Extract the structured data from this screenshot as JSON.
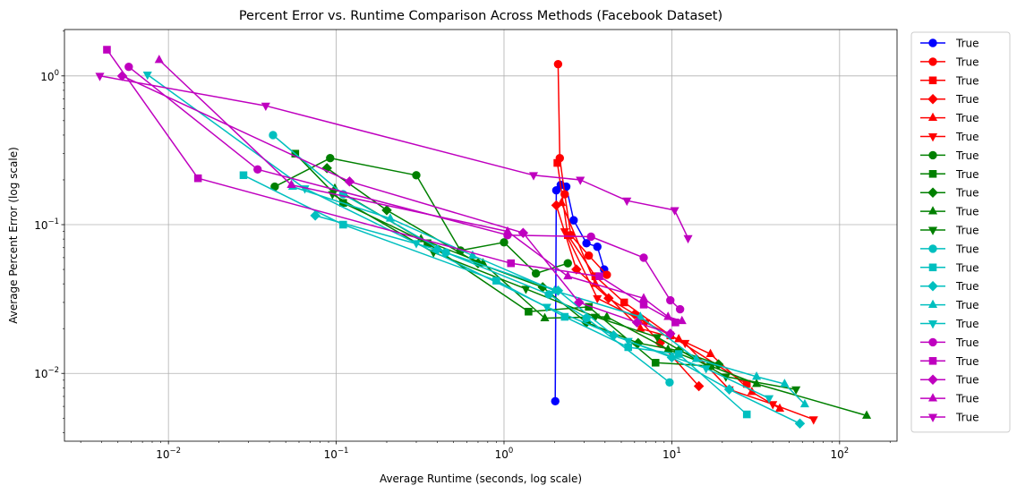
{
  "chart_data": {
    "type": "line",
    "title": "Percent Error vs. Runtime Comparison Across Methods (Facebook Dataset)",
    "xlabel": "Average Runtime (seconds, log scale)",
    "ylabel": "Average Percent Error (log scale)",
    "xscale": "log",
    "yscale": "log",
    "xlim": [
      0.0024,
      220
    ],
    "ylim": [
      0.0035,
      2.05
    ],
    "x_ticks": [
      {
        "value": 0.01,
        "base": "10",
        "exp": "−2"
      },
      {
        "value": 0.1,
        "base": "10",
        "exp": "−1"
      },
      {
        "value": 1,
        "base": "10",
        "exp": "0"
      },
      {
        "value": 10,
        "base": "10",
        "exp": "1"
      },
      {
        "value": 100,
        "base": "10",
        "exp": "2"
      }
    ],
    "y_ticks": [
      {
        "value": 0.01,
        "base": "10",
        "exp": "−2"
      },
      {
        "value": 0.1,
        "base": "10",
        "exp": "−1"
      },
      {
        "value": 1,
        "base": "10",
        "exp": "0"
      }
    ],
    "grid": true,
    "legend_position": "outside-right",
    "series": [
      {
        "name": "True",
        "color": "#0000ff",
        "marker": "circle",
        "x": [
          2.02,
          2.05,
          2.18,
          2.35,
          2.6,
          3.1,
          3.6,
          3.95
        ],
        "y": [
          0.0065,
          0.17,
          0.185,
          0.18,
          0.107,
          0.075,
          0.071,
          0.05
        ]
      },
      {
        "name": "True",
        "color": "#ff0000",
        "marker": "circle",
        "x": [
          2.1,
          2.15,
          2.3,
          2.5,
          3.2,
          4.1
        ],
        "y": [
          1.2,
          0.28,
          0.16,
          0.085,
          0.062,
          0.046
        ]
      },
      {
        "name": "True",
        "color": "#ff0000",
        "marker": "square",
        "x": [
          2.08,
          2.4,
          3.5,
          5.2,
          9.8,
          28
        ],
        "y": [
          0.26,
          0.085,
          0.045,
          0.03,
          0.018,
          0.0085
        ]
      },
      {
        "name": "True",
        "color": "#ff0000",
        "marker": "diamond",
        "x": [
          2.05,
          2.7,
          4.2,
          6.0,
          8.5,
          14.5
        ],
        "y": [
          0.135,
          0.05,
          0.032,
          0.025,
          0.016,
          0.0082
        ]
      },
      {
        "name": "True",
        "color": "#ff0000",
        "marker": "triangle-up",
        "x": [
          2.2,
          3.5,
          6.5,
          11,
          17,
          30,
          44
        ],
        "y": [
          0.14,
          0.04,
          0.02,
          0.017,
          0.0135,
          0.0075,
          0.0058
        ]
      },
      {
        "name": "True",
        "color": "#ff0000",
        "marker": "triangle-down",
        "x": [
          2.3,
          3.6,
          7.0,
          12,
          22,
          40,
          70
        ],
        "y": [
          0.09,
          0.032,
          0.022,
          0.016,
          0.0078,
          0.0062,
          0.0049
        ]
      },
      {
        "name": "True",
        "color": "#008000",
        "marker": "circle",
        "x": [
          0.043,
          0.092,
          0.3,
          0.55,
          1.0,
          1.55,
          2.4
        ],
        "y": [
          0.18,
          0.28,
          0.215,
          0.067,
          0.076,
          0.047,
          0.055
        ]
      },
      {
        "name": "True",
        "color": "#008000",
        "marker": "square",
        "x": [
          0.057,
          0.11,
          0.35,
          1.4,
          3.2,
          8.0,
          17
        ],
        "y": [
          0.3,
          0.14,
          0.075,
          0.026,
          0.028,
          0.0118,
          0.0112
        ]
      },
      {
        "name": "True",
        "color": "#008000",
        "marker": "diamond",
        "x": [
          0.088,
          0.2,
          0.7,
          1.7,
          3.1,
          6.3,
          11,
          19
        ],
        "y": [
          0.24,
          0.125,
          0.055,
          0.038,
          0.022,
          0.016,
          0.0142,
          0.0115
        ]
      },
      {
        "name": "True",
        "color": "#008000",
        "marker": "triangle-up",
        "x": [
          0.098,
          0.32,
          0.75,
          1.75,
          4.1,
          9.5,
          32,
          145
        ],
        "y": [
          0.175,
          0.08,
          0.055,
          0.0235,
          0.024,
          0.0145,
          0.0085,
          0.0052
        ]
      },
      {
        "name": "True",
        "color": "#008000",
        "marker": "triangle-down",
        "x": [
          0.095,
          0.38,
          1.35,
          3.5,
          8.2,
          21,
          55
        ],
        "y": [
          0.16,
          0.065,
          0.037,
          0.024,
          0.0175,
          0.0095,
          0.0078
        ]
      },
      {
        "name": "True",
        "color": "#00bfbf",
        "marker": "circle",
        "x": [
          0.042,
          0.11,
          0.45,
          1.85,
          3.1,
          9.7
        ],
        "y": [
          0.4,
          0.16,
          0.065,
          0.034,
          0.0235,
          0.0087
        ]
      },
      {
        "name": "True",
        "color": "#00bfbf",
        "marker": "square",
        "x": [
          0.028,
          0.11,
          0.9,
          2.3,
          5.5,
          11,
          28
        ],
        "y": [
          0.215,
          0.1,
          0.042,
          0.024,
          0.015,
          0.0135,
          0.0053
        ]
      },
      {
        "name": "True",
        "color": "#00bfbf",
        "marker": "diamond",
        "x": [
          0.075,
          0.4,
          2.1,
          4.5,
          10,
          22,
          58
        ],
        "y": [
          0.115,
          0.068,
          0.036,
          0.018,
          0.0128,
          0.0078,
          0.0046
        ]
      },
      {
        "name": "True",
        "color": "#00bfbf",
        "marker": "triangle-up",
        "x": [
          0.055,
          0.21,
          0.65,
          2.0,
          6.5,
          14,
          32,
          47,
          62
        ],
        "y": [
          0.18,
          0.11,
          0.062,
          0.036,
          0.024,
          0.0125,
          0.0095,
          0.0085,
          0.0062
        ]
      },
      {
        "name": "True",
        "color": "#00bfbf",
        "marker": "triangle-down",
        "x": [
          0.0075,
          0.065,
          0.3,
          1.8,
          5.5,
          16,
          38
        ],
        "y": [
          1.02,
          0.175,
          0.075,
          0.028,
          0.0165,
          0.0108,
          0.0068
        ]
      },
      {
        "name": "True",
        "color": "#bf00bf",
        "marker": "circle",
        "x": [
          0.0058,
          0.034,
          1.05,
          3.3,
          6.8,
          9.8,
          11.2
        ],
        "y": [
          1.15,
          0.235,
          0.085,
          0.083,
          0.06,
          0.031,
          0.027
        ]
      },
      {
        "name": "True",
        "color": "#bf00bf",
        "marker": "square",
        "x": [
          0.0043,
          0.015,
          1.1,
          3.7,
          6.8,
          10.5
        ],
        "y": [
          1.5,
          0.205,
          0.055,
          0.045,
          0.029,
          0.022
        ]
      },
      {
        "name": "True",
        "color": "#bf00bf",
        "marker": "diamond",
        "x": [
          0.0053,
          0.12,
          1.3,
          2.8,
          6.2,
          9.8
        ],
        "y": [
          1.0,
          0.195,
          0.088,
          0.03,
          0.022,
          0.0185
        ]
      },
      {
        "name": "True",
        "color": "#bf00bf",
        "marker": "triangle-up",
        "x": [
          0.0088,
          0.054,
          1.05,
          2.4,
          6.8,
          9.5,
          11.5
        ],
        "y": [
          1.28,
          0.185,
          0.09,
          0.045,
          0.032,
          0.024,
          0.0225
        ]
      },
      {
        "name": "True",
        "color": "#bf00bf",
        "marker": "triangle-down",
        "x": [
          0.0039,
          0.038,
          1.5,
          2.85,
          5.4,
          10.4,
          12.5
        ],
        "y": [
          1.0,
          0.63,
          0.215,
          0.2,
          0.145,
          0.125,
          0.081
        ]
      }
    ]
  }
}
